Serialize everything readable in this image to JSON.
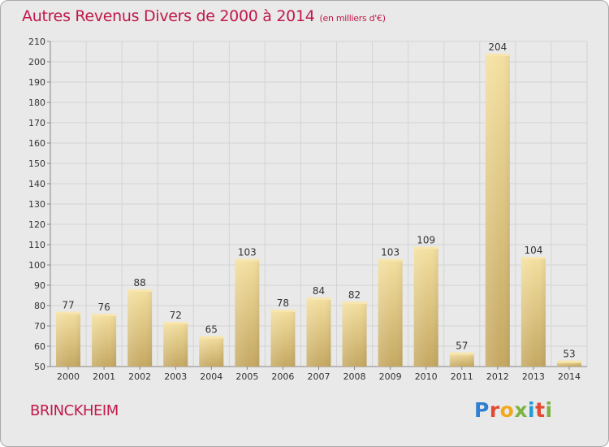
{
  "title": "Autres Revenus Divers de 2000 à 2014",
  "title_unit": "(en milliers d'€)",
  "commune": "BRINCKHEIM",
  "logo_text": "Proxiti",
  "colors": {
    "accent": "#c0184a",
    "bar_light": "#f2dc98",
    "bar_dark": "#c5a862",
    "background": "#e9e9e9",
    "grid": "#d6d6d6"
  },
  "chart_data": {
    "type": "bar",
    "title": "Autres Revenus Divers de 2000 à 2014",
    "xlabel": "",
    "ylabel": "",
    "categories": [
      "2000",
      "2001",
      "2002",
      "2003",
      "2004",
      "2005",
      "2006",
      "2007",
      "2008",
      "2009",
      "2010",
      "2011",
      "2012",
      "2013",
      "2014"
    ],
    "values": [
      77,
      76,
      88,
      72,
      65,
      103,
      78,
      84,
      82,
      103,
      109,
      57,
      204,
      104,
      53
    ],
    "ylim": [
      50,
      210
    ],
    "yticks": [
      50,
      60,
      70,
      80,
      90,
      100,
      110,
      120,
      130,
      140,
      150,
      160,
      170,
      180,
      190,
      200,
      210
    ],
    "grid": true,
    "data_labels": true
  }
}
